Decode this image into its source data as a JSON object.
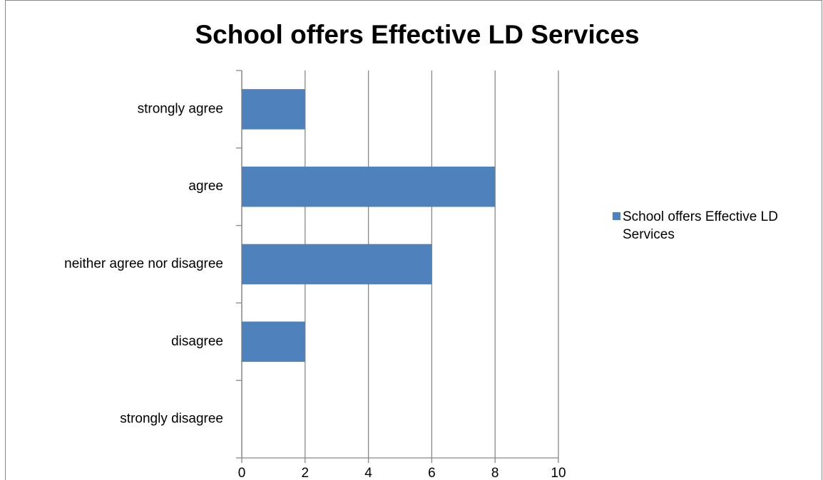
{
  "chart_data": {
    "type": "hbar",
    "title": "School offers Effective LD Services",
    "categories": [
      "strongly agree",
      "agree",
      "neither agree nor disagree",
      "disagree",
      "strongly disagree"
    ],
    "series": [
      {
        "name": "School offers Effective LD Services",
        "color": "#4f81bd",
        "values": [
          2,
          8,
          6,
          2,
          0
        ]
      }
    ],
    "xlim": [
      0,
      10
    ],
    "xticks": [
      0,
      2,
      4,
      6,
      8,
      10
    ],
    "grid": true,
    "legend": "right"
  }
}
